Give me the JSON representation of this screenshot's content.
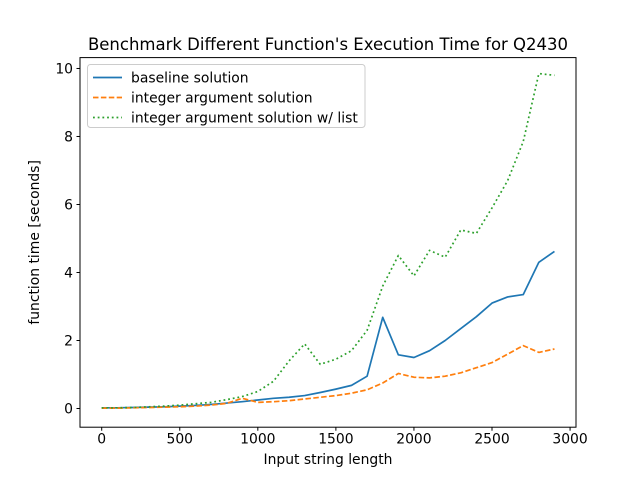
{
  "chart_data": {
    "type": "line",
    "title": "Benchmark Different Function's Execution Time for Q2430",
    "xlabel": "Input string length",
    "ylabel": "function time [seconds]",
    "x": [
      0,
      100,
      200,
      300,
      400,
      500,
      600,
      700,
      800,
      900,
      1000,
      1100,
      1200,
      1300,
      1400,
      1500,
      1600,
      1700,
      1800,
      1900,
      2000,
      2100,
      2200,
      2300,
      2400,
      2500,
      2600,
      2700,
      2800,
      2900
    ],
    "series": [
      {
        "name": "baseline solution",
        "color": "#1f77b4",
        "linestyle": "solid",
        "values": [
          0.02,
          0.02,
          0.03,
          0.04,
          0.05,
          0.07,
          0.09,
          0.12,
          0.16,
          0.2,
          0.25,
          0.3,
          0.33,
          0.38,
          0.47,
          0.57,
          0.68,
          0.95,
          2.68,
          1.58,
          1.5,
          1.7,
          2.0,
          2.35,
          2.7,
          3.1,
          3.28,
          3.35,
          4.3,
          4.62
        ]
      },
      {
        "name": "integer argument solution",
        "color": "#ff7f0e",
        "linestyle": "dashed",
        "values": [
          0.01,
          0.01,
          0.02,
          0.03,
          0.04,
          0.05,
          0.07,
          0.1,
          0.15,
          0.3,
          0.18,
          0.2,
          0.23,
          0.28,
          0.33,
          0.38,
          0.45,
          0.55,
          0.75,
          1.03,
          0.92,
          0.9,
          0.95,
          1.05,
          1.2,
          1.35,
          1.6,
          1.85,
          1.65,
          1.75
        ]
      },
      {
        "name": "integer argument solution w/ list",
        "color": "#2ca02c",
        "linestyle": "dotted",
        "values": [
          0.02,
          0.02,
          0.03,
          0.05,
          0.07,
          0.1,
          0.14,
          0.18,
          0.26,
          0.35,
          0.5,
          0.8,
          1.4,
          1.9,
          1.3,
          1.45,
          1.7,
          2.3,
          3.6,
          4.5,
          3.9,
          4.65,
          4.45,
          5.25,
          5.15,
          5.9,
          6.7,
          7.85,
          9.85,
          9.8
        ]
      }
    ],
    "xticks": [
      0,
      500,
      1000,
      1500,
      2000,
      2500,
      3000
    ],
    "yticks": [
      0,
      2,
      4,
      6,
      8,
      10
    ],
    "xlim": [
      -139,
      3038
    ],
    "ylim": [
      -0.55,
      10.32
    ],
    "grid": false,
    "legend_position": "upper left",
    "colors": {
      "axis": "#000000",
      "legend_border": "#cccccc",
      "background": "#ffffff"
    }
  }
}
